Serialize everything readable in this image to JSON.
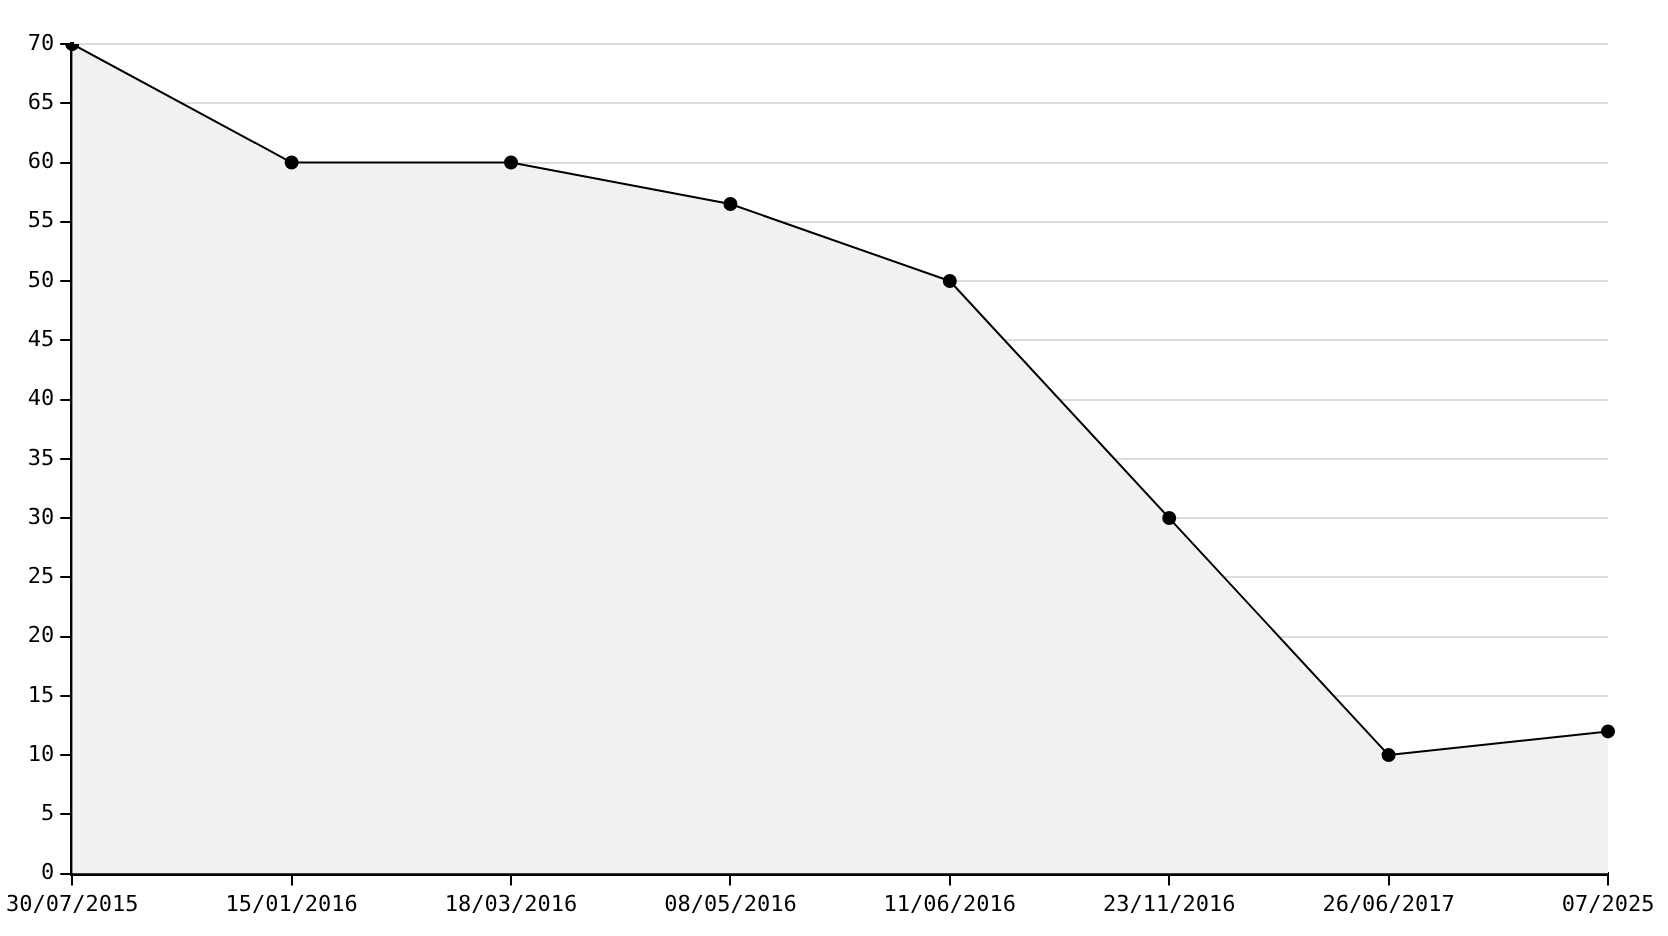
{
  "chart_data": {
    "type": "area",
    "categories": [
      "30/07/2015",
      "15/01/2016",
      "18/03/2016",
      "08/05/2016",
      "11/06/2016",
      "23/11/2016",
      "26/06/2017",
      "07/2025"
    ],
    "series": [
      {
        "color": "#000000",
        "values": [
          70,
          60,
          60,
          56.5,
          50,
          30,
          10,
          12
        ]
      }
    ],
    "ylim": [
      0,
      70
    ],
    "yticks": [
      0,
      5,
      10,
      15,
      20,
      25,
      30,
      35,
      40,
      45,
      50,
      55,
      60,
      65,
      70
    ],
    "grid": "y",
    "legend": false,
    "marker": "circle",
    "line_style": "solid"
  }
}
